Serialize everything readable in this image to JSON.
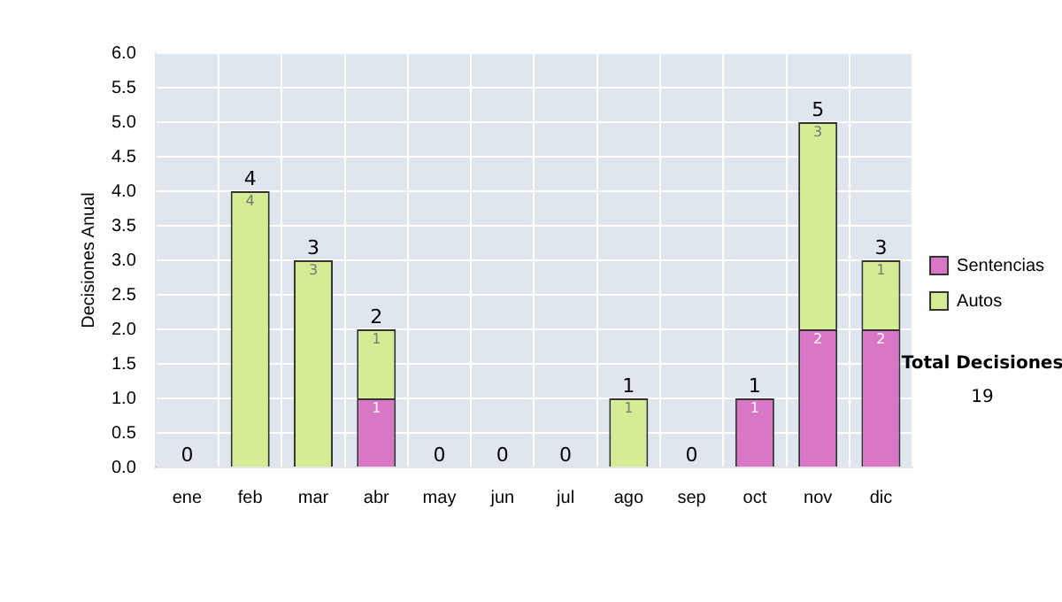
{
  "chart_data": {
    "type": "bar",
    "stacked": true,
    "ylabel": "Decisiones Anual",
    "categories": [
      "ene",
      "feb",
      "mar",
      "abr",
      "may",
      "jun",
      "jul",
      "ago",
      "sep",
      "oct",
      "nov",
      "dic"
    ],
    "series": [
      {
        "name": "Sentencias",
        "color": "#d977c6",
        "values": [
          0,
          0,
          0,
          1,
          0,
          0,
          0,
          0,
          0,
          1,
          2,
          2
        ],
        "value_labels": [
          null,
          null,
          null,
          "1",
          null,
          null,
          null,
          null,
          null,
          "1",
          "2",
          "2"
        ]
      },
      {
        "name": "Autos",
        "color": "#d4ec94",
        "values": [
          0,
          4,
          3,
          1,
          0,
          0,
          0,
          1,
          0,
          0,
          3,
          1
        ],
        "value_labels": [
          null,
          "4",
          "3",
          "1",
          null,
          null,
          null,
          "1",
          null,
          null,
          "3",
          "1"
        ]
      }
    ],
    "totals": [
      "0",
      "4",
      "3",
      "2",
      "0",
      "0",
      "0",
      "1",
      "0",
      "1",
      "5",
      "3"
    ],
    "ylim": [
      0,
      6
    ],
    "yticks": [
      {
        "value": 0,
        "label": "0.0"
      },
      {
        "value": 0.5,
        "label": "0.5"
      },
      {
        "value": 1,
        "label": "1.0"
      },
      {
        "value": 1.5,
        "label": "1.5"
      },
      {
        "value": 2,
        "label": "2.0"
      },
      {
        "value": 2.5,
        "label": "2.5"
      },
      {
        "value": 3,
        "label": "3.0"
      },
      {
        "value": 3.5,
        "label": "3.5"
      },
      {
        "value": 4,
        "label": "4.0"
      },
      {
        "value": 4.5,
        "label": "4.5"
      },
      {
        "value": 5,
        "label": "5.0"
      },
      {
        "value": 5.5,
        "label": "5.5"
      },
      {
        "value": 6,
        "label": "6.0"
      }
    ],
    "grid": true,
    "legend": "right",
    "annotations": [
      "Total Decisiones",
      "19"
    ]
  }
}
